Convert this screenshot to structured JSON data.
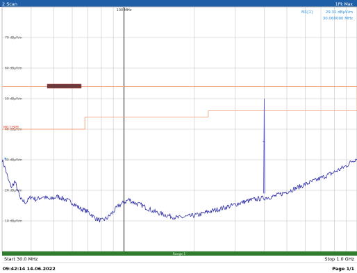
{
  "window": {
    "title": "2 Scan",
    "marker_label": "1Pk Max"
  },
  "marker": {
    "name": "M1[1]",
    "level": "29.31 dBµV/m",
    "frequency": "30.060000 MHz"
  },
  "limit_line_label": "MO CISPR",
  "footer": {
    "start": "Start 30.0 MHz",
    "range": "Range 1",
    "stop": "Stop 1.0 GHz",
    "timestamp": "09:42:14 14.06.2022",
    "page": "Page 1/1"
  },
  "colors": {
    "title_bar": "#1f5fa8",
    "trace": "#2a2aa8",
    "limit": "#f0a080",
    "marker_text": "#2a8de0",
    "range_bar": "#2e7d2e",
    "grid": "#c4c4c4"
  },
  "chart_data": {
    "type": "line",
    "xscale": "log",
    "xlim": [
      30,
      1000
    ],
    "ylim": [
      0,
      80
    ],
    "x_annotation": "100 MHz",
    "ytick_labels": [
      {
        "value": 70,
        "label": "70 dBµV/m"
      },
      {
        "value": 60,
        "label": "60 dBµV/m"
      },
      {
        "value": 50,
        "label": "50 dBµV/m"
      },
      {
        "value": 40,
        "label": "40 dBµV/m"
      },
      {
        "value": 30,
        "label": "30 dBµV/m"
      },
      {
        "value": 20,
        "label": "20 dBµV/m"
      },
      {
        "value": 10,
        "label": "10 dBµV/m"
      }
    ],
    "grid": true,
    "series": [
      {
        "x": [
          30,
          31,
          32,
          33,
          34,
          35,
          36,
          38,
          40,
          42,
          45,
          48,
          52,
          56,
          60,
          65,
          70,
          75,
          80,
          85,
          90,
          95,
          100,
          105,
          110,
          120,
          135,
          150,
          170,
          190,
          210,
          230,
          260,
          290,
          320,
          360,
          400,
          440,
          480,
          520,
          560,
          600,
          650,
          700,
          750,
          800,
          850,
          900,
          950,
          1000
        ],
        "y": [
          30,
          27,
          23,
          21,
          23,
          20,
          17,
          16,
          18,
          17,
          18,
          17,
          18,
          17,
          16,
          14,
          13,
          11,
          10,
          11,
          13,
          15,
          16,
          17,
          16,
          15,
          13,
          12,
          11,
          11.5,
          12,
          13,
          14,
          15,
          16,
          17,
          17.5,
          18,
          19,
          20,
          21,
          22,
          23,
          24,
          25,
          26,
          27,
          28,
          29.5,
          30.5
        ]
      }
    ],
    "spike": {
      "x": 400,
      "y": 50,
      "base": 19,
      "mid": 36
    },
    "limit_line": {
      "x": [
        30,
        68,
        68,
        230,
        230,
        1000
      ],
      "y": [
        40,
        40,
        44,
        44,
        46,
        46
      ]
    },
    "upper_line": {
      "x": [
        30,
        1000
      ],
      "y": [
        54,
        54
      ]
    }
  }
}
